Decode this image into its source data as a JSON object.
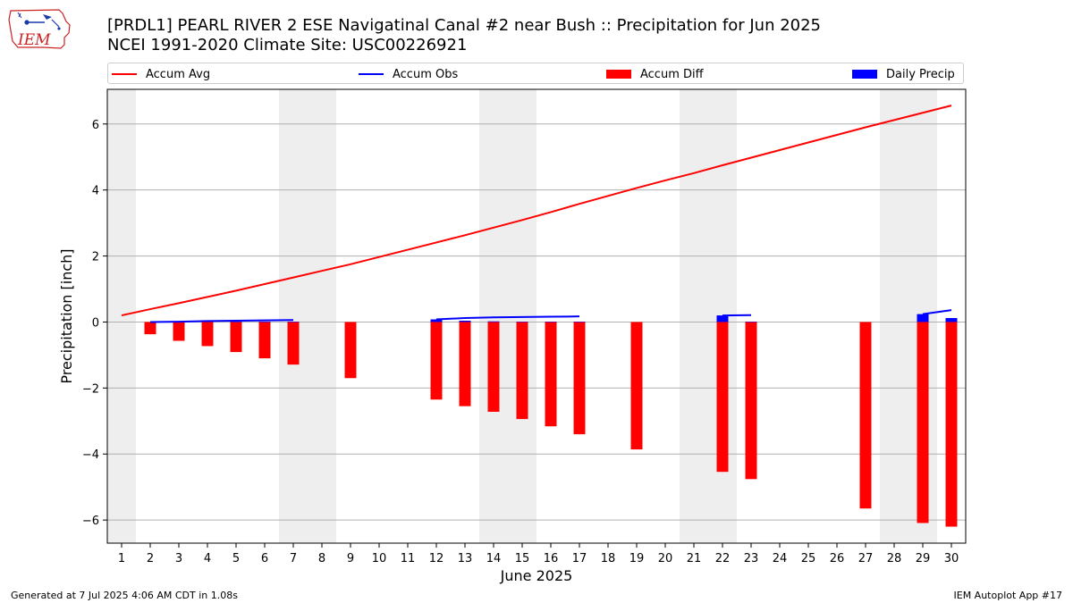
{
  "title_line1": "[PRDL1] PEARL RIVER 2 ESE Navigatinal Canal #2 near Bush :: Precipitation for Jun 2025",
  "title_line2": "NCEI 1991-2020 Climate Site: USC00226921",
  "logo_text": "IEM",
  "footer_left": "Generated at 7 Jul 2025 4:06 AM CDT in 1.08s",
  "footer_right": "IEM Autoplot App #17",
  "legend": [
    {
      "label": "Accum Avg",
      "kind": "line",
      "color": "#ff0000"
    },
    {
      "label": "Accum Obs",
      "kind": "line",
      "color": "#0000ff"
    },
    {
      "label": "Accum Diff",
      "kind": "box",
      "color": "#ff0000"
    },
    {
      "label": "Daily Precip",
      "kind": "box",
      "color": "#0000ff"
    }
  ],
  "chart_data": {
    "type": "bar",
    "xlabel": "June 2025",
    "ylabel": "Precipitation [inch]",
    "xlim": [
      0.5,
      30.5
    ],
    "ylim": [
      -6.7,
      7.05
    ],
    "x_ticks": [
      1,
      2,
      3,
      4,
      5,
      6,
      7,
      8,
      9,
      10,
      11,
      12,
      13,
      14,
      15,
      16,
      17,
      18,
      19,
      20,
      21,
      22,
      23,
      24,
      25,
      26,
      27,
      28,
      29,
      30
    ],
    "y_ticks": [
      -6,
      -4,
      -2,
      0,
      2,
      4,
      6
    ],
    "y_tick_labels": [
      "−6",
      "−4",
      "−2",
      "0",
      "2",
      "4",
      "6"
    ],
    "grid": "horizontal",
    "weekend_shading": [
      [
        0.5,
        1.5
      ],
      [
        6.5,
        8.5
      ],
      [
        13.5,
        15.5
      ],
      [
        20.5,
        22.5
      ],
      [
        27.5,
        29.5
      ]
    ],
    "shade_color": "#eeeeee",
    "accum_avg": {
      "name": "Accum Avg",
      "color": "#ff0000",
      "x": [
        1,
        2,
        3,
        4,
        5,
        6,
        7,
        8,
        9,
        10,
        11,
        12,
        13,
        14,
        15,
        16,
        17,
        18,
        19,
        20,
        21,
        22,
        23,
        24,
        25,
        26,
        27,
        28,
        29,
        30
      ],
      "values": [
        0.2,
        0.39,
        0.57,
        0.76,
        0.95,
        1.15,
        1.35,
        1.55,
        1.75,
        1.97,
        2.19,
        2.41,
        2.63,
        2.86,
        3.09,
        3.33,
        3.58,
        3.82,
        4.06,
        4.29,
        4.51,
        4.75,
        4.98,
        5.21,
        5.44,
        5.67,
        5.9,
        6.12,
        6.34,
        6.56
      ]
    },
    "accum_obs": {
      "name": "Accum Obs",
      "color": "#0000ff",
      "segments": [
        {
          "x": [
            2,
            3,
            4,
            5,
            6,
            7
          ],
          "values": [
            0.0,
            0.01,
            0.03,
            0.04,
            0.05,
            0.06
          ]
        },
        {
          "x": [
            12,
            13,
            14,
            15,
            16,
            17
          ],
          "values": [
            0.08,
            0.12,
            0.14,
            0.15,
            0.16,
            0.17
          ]
        },
        {
          "x": [
            22,
            23
          ],
          "values": [
            0.2,
            0.21
          ]
        },
        {
          "x": [
            29,
            30
          ],
          "values": [
            0.24,
            0.36
          ]
        }
      ]
    },
    "accum_diff": {
      "name": "Accum Diff",
      "color": "#ff0000",
      "x": [
        2,
        3,
        4,
        5,
        6,
        7,
        9,
        12,
        13,
        14,
        15,
        16,
        17,
        19,
        22,
        23,
        27,
        29,
        30
      ],
      "values": [
        -0.37,
        -0.57,
        -0.73,
        -0.91,
        -1.1,
        -1.29,
        -1.7,
        -2.35,
        -2.55,
        -2.72,
        -2.94,
        -3.16,
        -3.4,
        -3.86,
        -4.54,
        -4.76,
        -5.65,
        -6.09,
        -6.2
      ]
    },
    "daily_precip": {
      "name": "Daily Precip",
      "color": "#0000ff",
      "x": [
        2,
        3,
        4,
        5,
        6,
        7,
        12,
        13,
        14,
        15,
        16,
        17,
        22,
        23,
        29,
        30
      ],
      "values": [
        0.0,
        0.01,
        0.02,
        0.01,
        0.01,
        0.01,
        0.08,
        0.04,
        0.02,
        0.01,
        0.01,
        0.01,
        0.2,
        0.01,
        0.24,
        0.12
      ]
    }
  }
}
